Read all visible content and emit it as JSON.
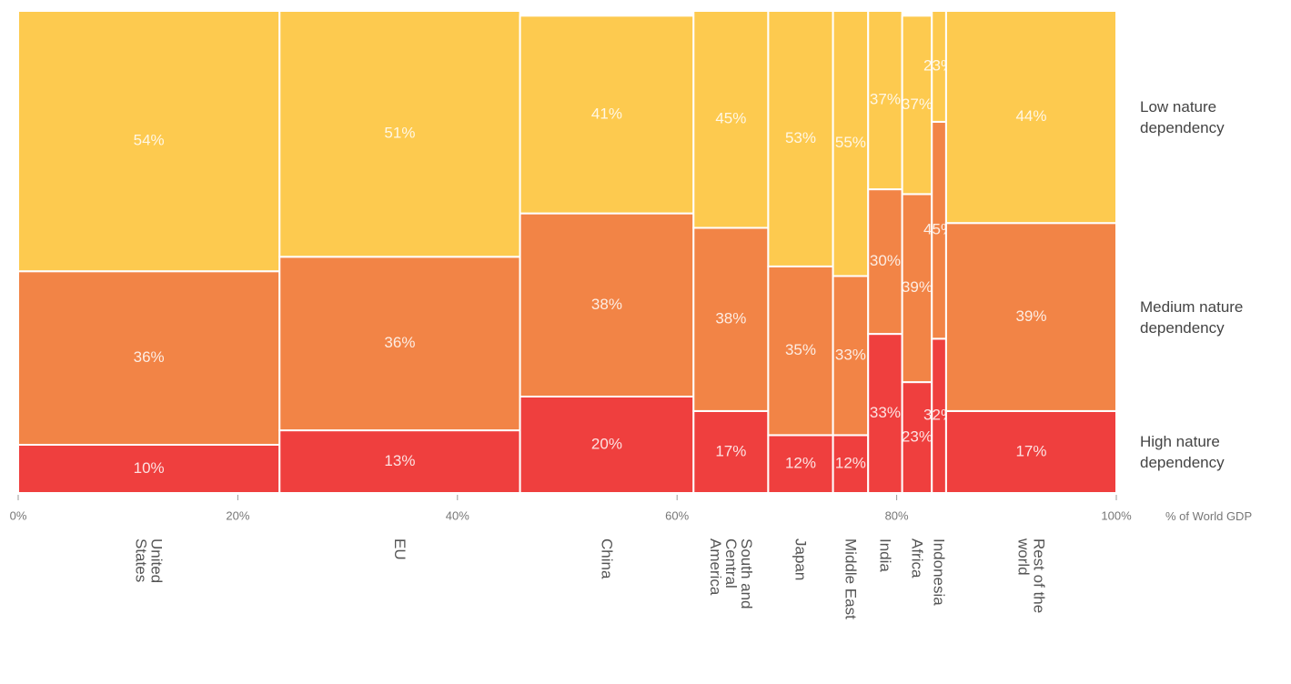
{
  "chart_data": {
    "type": "marimekko",
    "x_label": "% of World GDP",
    "categories": [
      "United States",
      "EU",
      "China",
      "South and Central America",
      "Japan",
      "Middle East",
      "India",
      "Africa",
      "Indonesia",
      "Rest of the world"
    ],
    "widths": [
      23.8,
      21.9,
      15.8,
      6.8,
      5.9,
      3.2,
      3.1,
      2.7,
      1.3,
      15.5
    ],
    "series": [
      {
        "name": "High nature dependency",
        "color": "#ef3f3e",
        "values": [
          10,
          13,
          20,
          17,
          12,
          12,
          33,
          23,
          32,
          17
        ],
        "value_labels": [
          "10%",
          "13%",
          "20%",
          "17%",
          "12%",
          "12%",
          "33%",
          "23%",
          "32%",
          "17%"
        ]
      },
      {
        "name": "Medium nature dependency",
        "color": "#f28446",
        "values": [
          36,
          36,
          38,
          38,
          35,
          33,
          30,
          39,
          45,
          39
        ],
        "value_labels": [
          "36%",
          "36%",
          "38%",
          "38%",
          "35%",
          "33%",
          "30%",
          "39%",
          "45%",
          "39%"
        ]
      },
      {
        "name": "Low nature dependency",
        "color": "#fdca4f",
        "values": [
          54,
          51,
          41,
          45,
          53,
          55,
          37,
          37,
          23,
          44
        ],
        "value_labels": [
          "54%",
          "51%",
          "41%",
          "45%",
          "53%",
          "55%",
          "37%",
          "37%",
          "23%",
          "44%"
        ]
      }
    ],
    "xlim": [
      0,
      100
    ],
    "xticks": [
      {
        "value": 0,
        "label": "0%"
      },
      {
        "value": 20,
        "label": "20%"
      },
      {
        "value": 40,
        "label": "40%"
      },
      {
        "value": 60,
        "label": "60%"
      },
      {
        "value": 80,
        "label": "80%"
      },
      {
        "value": 100,
        "label": "100%"
      }
    ],
    "ylim": [
      0,
      100
    ]
  }
}
